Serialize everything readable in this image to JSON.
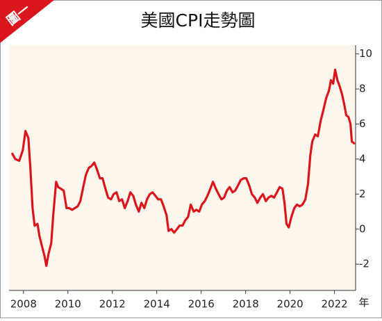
{
  "chart_data": {
    "type": "line",
    "badge": "圖一",
    "title": "美國CPI走勢圖",
    "x_unit": "年",
    "x": [
      2007.5,
      2007.63,
      2007.81,
      2007.97,
      2008.09,
      2008.22,
      2008.31,
      2008.41,
      2008.5,
      2008.63,
      2008.72,
      2008.84,
      2008.94,
      2009.03,
      2009.13,
      2009.25,
      2009.34,
      2009.47,
      2009.56,
      2009.69,
      2009.81,
      2009.94,
      2010.06,
      2010.19,
      2010.31,
      2010.44,
      2010.56,
      2010.69,
      2010.81,
      2010.94,
      2011.06,
      2011.19,
      2011.31,
      2011.44,
      2011.56,
      2011.69,
      2011.81,
      2011.94,
      2012.06,
      2012.19,
      2012.31,
      2012.44,
      2012.56,
      2012.69,
      2012.81,
      2012.94,
      2013.06,
      2013.19,
      2013.31,
      2013.44,
      2013.56,
      2013.69,
      2013.81,
      2013.94,
      2014.06,
      2014.19,
      2014.31,
      2014.44,
      2014.53,
      2014.66,
      2014.78,
      2014.91,
      2015.03,
      2015.16,
      2015.28,
      2015.41,
      2015.53,
      2015.66,
      2015.78,
      2015.91,
      2016.03,
      2016.16,
      2016.28,
      2016.41,
      2016.53,
      2016.66,
      2016.78,
      2016.91,
      2017.03,
      2017.16,
      2017.28,
      2017.41,
      2017.53,
      2017.66,
      2017.78,
      2017.91,
      2018.03,
      2018.16,
      2018.28,
      2018.41,
      2018.53,
      2018.66,
      2018.78,
      2018.91,
      2019.03,
      2019.16,
      2019.28,
      2019.41,
      2019.53,
      2019.66,
      2019.75,
      2019.84,
      2019.94,
      2020.06,
      2020.19,
      2020.31,
      2020.44,
      2020.56,
      2020.69,
      2020.81,
      2020.91,
      2021.0,
      2021.13,
      2021.25,
      2021.38,
      2021.5,
      2021.63,
      2021.75,
      2021.84,
      2021.94,
      2022.03,
      2022.13,
      2022.22,
      2022.34,
      2022.44,
      2022.53,
      2022.63,
      2022.72,
      2022.78,
      2022.88
    ],
    "series": [
      {
        "name": "CPI",
        "color": "#d9161c",
        "values": [
          4.3,
          4.0,
          3.9,
          4.5,
          5.6,
          5.2,
          3.5,
          1.2,
          0.2,
          0.3,
          -0.4,
          -1.0,
          -1.5,
          -2.1,
          -1.4,
          -0.8,
          0.8,
          2.7,
          2.4,
          2.3,
          2.2,
          1.2,
          1.2,
          1.1,
          1.2,
          1.3,
          1.6,
          2.4,
          3.1,
          3.5,
          3.6,
          3.8,
          3.4,
          2.9,
          2.9,
          2.3,
          1.8,
          1.7,
          2.0,
          2.1,
          1.6,
          1.7,
          1.2,
          1.6,
          2.1,
          1.9,
          1.4,
          1.0,
          1.5,
          1.2,
          1.7,
          2.0,
          2.1,
          1.9,
          1.7,
          1.7,
          1.3,
          0.8,
          -0.1,
          0.0,
          -0.2,
          0.0,
          0.2,
          0.2,
          0.5,
          0.7,
          1.4,
          1.0,
          1.1,
          1.0,
          1.4,
          1.6,
          1.9,
          2.3,
          2.7,
          2.3,
          2.0,
          1.7,
          1.8,
          2.2,
          2.4,
          2.1,
          2.2,
          2.5,
          2.8,
          2.9,
          2.9,
          2.5,
          2.0,
          1.8,
          1.5,
          1.8,
          2.0,
          1.6,
          1.8,
          1.9,
          1.8,
          2.1,
          2.4,
          2.3,
          1.5,
          0.3,
          0.1,
          0.7,
          1.2,
          1.4,
          1.3,
          1.4,
          1.7,
          2.6,
          4.2,
          5.0,
          5.4,
          5.3,
          6.2,
          6.8,
          7.5,
          7.9,
          8.5,
          8.3,
          9.1,
          8.5,
          8.2,
          7.7,
          7.1,
          6.5,
          6.4,
          6.0,
          5.0,
          4.9
        ]
      }
    ],
    "xlim": [
      2007.35,
      2022.95
    ],
    "xticks": [
      2008,
      2010,
      2012,
      2014,
      2016,
      2018,
      2020,
      2022
    ],
    "ylim": [
      -3.5,
      10.5
    ],
    "yticks": [
      -2,
      0,
      2,
      4,
      6,
      8,
      10
    ],
    "grid": false
  }
}
